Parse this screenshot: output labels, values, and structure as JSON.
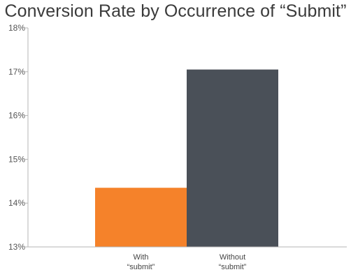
{
  "chart_data": {
    "type": "bar",
    "title": "Conversion Rate by Occurrence of “Submit”",
    "categories": [
      [
        "With",
        "“submit”"
      ],
      [
        "Without",
        "“submit”"
      ]
    ],
    "values": [
      14.35,
      17.05
    ],
    "colors": [
      "#f5822a",
      "#4a5058"
    ],
    "ylim": [
      13,
      18
    ],
    "yticks": [
      {
        "value": 13,
        "label": "13%"
      },
      {
        "value": 14,
        "label": "14%"
      },
      {
        "value": 15,
        "label": "15%"
      },
      {
        "value": 16,
        "label": "16%"
      },
      {
        "value": 17,
        "label": "17%"
      },
      {
        "value": 18,
        "label": "18%"
      }
    ],
    "xlabel": "",
    "ylabel": "",
    "grid": false,
    "legend": "none"
  }
}
